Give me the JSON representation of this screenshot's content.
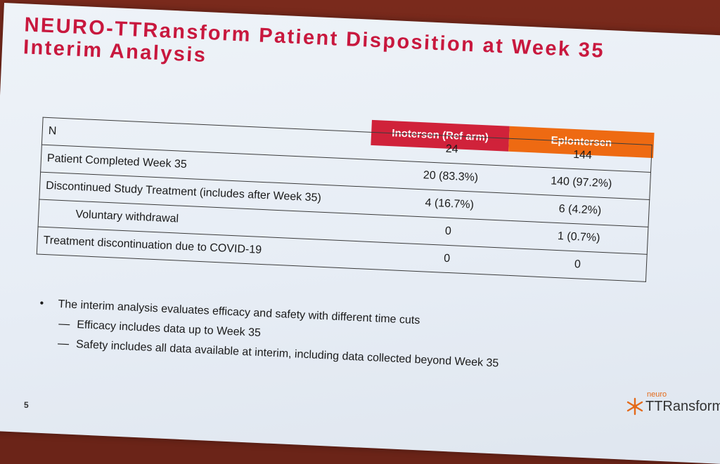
{
  "slide": {
    "title_line1": "NEURO-TTRansform Patient Disposition at Week 35",
    "title_line2": "Interim Analysis",
    "page_number": "5"
  },
  "table": {
    "row_label_header": "N",
    "columns": [
      "Inotersen (Ref arm)",
      "Eplontersen"
    ],
    "n_values": [
      "24",
      "144"
    ],
    "rows": [
      {
        "label": "Patient Completed Week 35",
        "values": [
          "20 (83.3%)",
          "140 (97.2%)"
        ]
      },
      {
        "label": "Discontinued Study Treatment (includes after Week 35)",
        "values": [
          "4 (16.7%)",
          "6 (4.2%)"
        ]
      },
      {
        "label": "Voluntary withdrawal",
        "values": [
          "0",
          "1 (0.7%)"
        ]
      },
      {
        "label": "Treatment discontinuation due to COVID-19",
        "values": [
          "0",
          "0"
        ]
      }
    ]
  },
  "notes": {
    "bullet": "The interim analysis evaluates efficacy and safety with different time cuts",
    "sub1": "Efficacy includes data up to Week 35",
    "sub2": "Safety includes all data available at interim, including data collected beyond Week 35"
  },
  "logo": {
    "small_text": "neuro",
    "big_text": "TTRansform"
  },
  "colors": {
    "title": "#c8183e",
    "inotersen_header": "#d0223a",
    "eplontersen_header": "#ee6a12"
  }
}
